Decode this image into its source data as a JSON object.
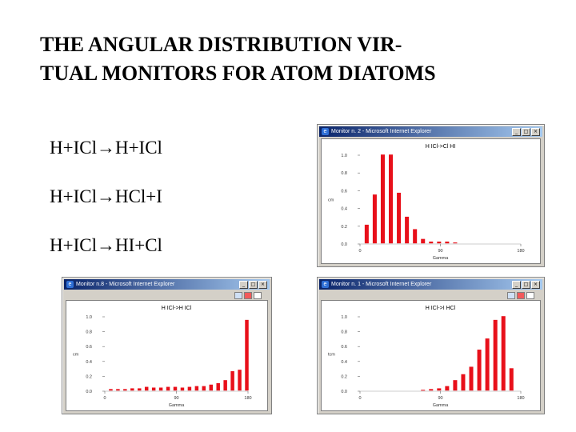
{
  "slide": {
    "title_line1": "THE ANGULAR DISTRIBUTION VIR-",
    "title_line2": "TUAL MONITORS FOR ATOM DIATOMS",
    "reactions": [
      "H+ICl→H+ICl",
      "H+ICl→HCl+I",
      "H+ICl→HI+Cl"
    ]
  },
  "window_controls": {
    "minimize": "_",
    "maximize": "□",
    "close": "×"
  },
  "chart_data": [
    {
      "type": "bar",
      "window_title": "Monitor n. 2 - Microsoft Internet Explorer",
      "title": "H ICl->Cl HI",
      "xlabel": "Gamma",
      "ylabel": "cm",
      "xlim": [
        0,
        180
      ],
      "ylim": [
        0,
        1.0
      ],
      "xticks": [
        0,
        90,
        180
      ],
      "yticks": [
        0.0,
        0.2,
        0.4,
        0.6,
        0.8,
        1.0
      ],
      "ytick_labels": [
        "0.0",
        "0.2",
        "0.4",
        "0.6",
        "0.8",
        "1.0"
      ],
      "bar_color": "#e8101a",
      "x": [
        7.5,
        16.5,
        25.5,
        34.5,
        43.5,
        52.5,
        61.5,
        70.5,
        79.5,
        88.5,
        97.5,
        106.5
      ],
      "values": [
        0.21,
        0.55,
        1.0,
        1.0,
        0.57,
        0.3,
        0.16,
        0.05,
        0.02,
        0.02,
        0.02,
        0.01
      ]
    },
    {
      "type": "bar",
      "window_title": "Monitor n.8 - Microsoft Internet Explorer",
      "title": "H ICl->H ICl",
      "xlabel": "Gamma",
      "ylabel": "cm",
      "xlim": [
        0,
        180
      ],
      "ylim": [
        0,
        1.0
      ],
      "xticks": [
        0,
        90,
        180
      ],
      "yticks": [
        0.0,
        0.2,
        0.4,
        0.6,
        0.8,
        1.0
      ],
      "ytick_labels": [
        "0.0",
        "0.2",
        "0.4",
        "0.6",
        "0.8",
        "1.0"
      ],
      "bar_color": "#e8101a",
      "x": [
        7.5,
        16.5,
        25.5,
        34.5,
        43.5,
        52.5,
        61.5,
        70.5,
        79.5,
        88.5,
        97.5,
        106.5,
        115.5,
        124.5,
        133.5,
        142.5,
        151.5,
        160.5,
        169.5,
        178.5
      ],
      "values": [
        0.02,
        0.02,
        0.02,
        0.03,
        0.03,
        0.05,
        0.04,
        0.04,
        0.05,
        0.05,
        0.04,
        0.05,
        0.06,
        0.06,
        0.08,
        0.1,
        0.14,
        0.26,
        0.28,
        0.95
      ]
    },
    {
      "type": "bar",
      "window_title": "Monitor n. 1 - Microsoft Internet Explorer",
      "title": "H ICl->I HCl",
      "xlabel": "Gamma",
      "ylabel": "tcm",
      "xlim": [
        0,
        180
      ],
      "ylim": [
        0,
        1.0
      ],
      "xticks": [
        0,
        90,
        180
      ],
      "yticks": [
        0.0,
        0.2,
        0.4,
        0.6,
        0.8,
        1.0
      ],
      "ytick_labels": [
        "0.0",
        "0.2",
        "0.4",
        "0.6",
        "0.8",
        "1.0"
      ],
      "bar_color": "#e8101a",
      "x": [
        70.5,
        79.5,
        88.5,
        97.5,
        106.5,
        115.5,
        124.5,
        133.5,
        142.5,
        151.5,
        160.5,
        169.5
      ],
      "values": [
        0.01,
        0.02,
        0.03,
        0.06,
        0.14,
        0.22,
        0.32,
        0.55,
        0.7,
        0.95,
        1.0,
        0.3
      ]
    }
  ]
}
